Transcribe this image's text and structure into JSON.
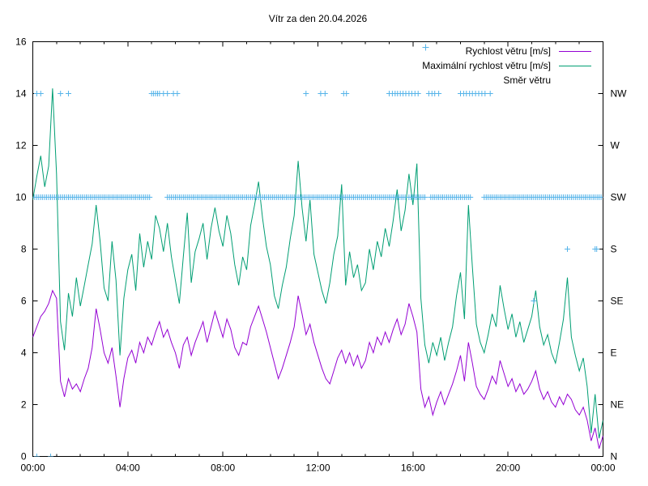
{
  "title": "Vítr za den 20.04.2026",
  "legend": {
    "items": [
      {
        "label": "Rychlost větru [m/s]",
        "color": "#9400d3",
        "sample": "line"
      },
      {
        "label": "Maximální rychlost větru [m/s]",
        "color": "#009e73",
        "sample": "line"
      },
      {
        "label": "Směr větru",
        "color": "#56b4e9",
        "sample": "plus-marker"
      }
    ]
  },
  "axes": {
    "x": {
      "tick_labels": [
        "00:00",
        "04:00",
        "08:00",
        "12:00",
        "16:00",
        "20:00",
        "00:00"
      ],
      "major_step_min": 240,
      "minor_step_min": 60,
      "range_min": [
        0,
        1440
      ]
    },
    "y_left": {
      "tick_labels": [
        "0",
        "2",
        "4",
        "6",
        "8",
        "10",
        "12",
        "14",
        "16"
      ],
      "range": [
        0,
        16
      ]
    },
    "y_right": {
      "labels": [
        "N",
        "NE",
        "E",
        "SE",
        "S",
        "SW",
        "W",
        "NW"
      ],
      "values": [
        0,
        2,
        4,
        6,
        8,
        10,
        12,
        14
      ]
    }
  },
  "colors": {
    "wind_speed": "#9400d3",
    "max_wind_speed": "#009e73",
    "wind_direction": "#56b4e9",
    "axis": "#000000",
    "background": "#ffffff"
  },
  "chart_data": {
    "type": "line",
    "title": "Vítr za den 20.04.2026",
    "xlabel": "",
    "ylabel": "",
    "ylim": [
      0,
      16
    ],
    "x_time_range": [
      "00:00",
      "24:00"
    ],
    "t_start_min": 0,
    "t_step_min": 10,
    "grid": false,
    "legend_position": "top-right-inside",
    "series": [
      {
        "name": "Rychlost větru [m/s]",
        "color": "#9400d3",
        "values": [
          4.6,
          5.0,
          5.4,
          5.6,
          5.9,
          6.4,
          6.1,
          2.9,
          2.3,
          3.0,
          2.6,
          2.8,
          2.5,
          3.0,
          3.4,
          4.2,
          5.7,
          4.9,
          4.0,
          3.6,
          4.2,
          3.1,
          1.9,
          3.0,
          3.8,
          4.1,
          3.6,
          4.4,
          4.0,
          4.6,
          4.3,
          4.8,
          5.2,
          4.6,
          4.9,
          4.4,
          4.0,
          3.4,
          4.3,
          4.6,
          3.9,
          4.4,
          4.8,
          5.2,
          4.4,
          5.0,
          5.6,
          5.1,
          4.6,
          5.3,
          4.9,
          4.2,
          3.9,
          4.4,
          4.3,
          5.0,
          5.4,
          5.8,
          5.3,
          4.8,
          4.2,
          3.6,
          3.0,
          3.4,
          3.9,
          4.4,
          5.0,
          6.2,
          5.5,
          4.7,
          5.1,
          4.4,
          3.9,
          3.4,
          3.0,
          2.8,
          3.3,
          3.8,
          4.1,
          3.6,
          4.0,
          3.5,
          3.9,
          3.4,
          3.7,
          4.4,
          4.0,
          4.6,
          4.3,
          4.8,
          4.4,
          4.9,
          5.3,
          4.7,
          5.1,
          5.9,
          5.4,
          4.8,
          2.6,
          1.9,
          2.3,
          1.6,
          2.1,
          2.5,
          2.0,
          2.4,
          2.8,
          3.3,
          3.9,
          2.9,
          4.4,
          3.6,
          2.7,
          2.4,
          2.2,
          2.6,
          3.1,
          2.8,
          3.7,
          3.2,
          2.7,
          3.0,
          2.5,
          2.8,
          2.4,
          2.6,
          2.9,
          3.3,
          2.6,
          2.2,
          2.5,
          2.1,
          1.9,
          2.3,
          2.0,
          2.4,
          2.2,
          1.8,
          1.6,
          1.9,
          1.4,
          0.6,
          1.1,
          0.3,
          0.8
        ]
      },
      {
        "name": "Maximální rychlost větru [m/s]",
        "color": "#009e73",
        "values": [
          9.9,
          10.8,
          11.6,
          10.4,
          11.2,
          14.2,
          10.9,
          5.2,
          4.1,
          6.3,
          5.4,
          6.9,
          5.8,
          6.6,
          7.4,
          8.2,
          9.7,
          8.3,
          6.5,
          6.0,
          8.3,
          6.8,
          3.9,
          6.1,
          7.2,
          7.8,
          6.4,
          8.6,
          7.3,
          8.3,
          7.6,
          9.3,
          8.8,
          7.9,
          9.0,
          7.7,
          6.8,
          5.9,
          7.7,
          9.4,
          6.7,
          7.9,
          8.4,
          9.0,
          7.6,
          8.8,
          9.6,
          8.7,
          8.1,
          9.3,
          8.6,
          7.4,
          6.6,
          7.7,
          7.2,
          8.9,
          9.7,
          10.6,
          9.2,
          8.1,
          7.4,
          6.2,
          5.7,
          6.6,
          7.3,
          8.4,
          9.3,
          11.4,
          9.6,
          8.3,
          9.9,
          7.8,
          7.1,
          6.4,
          5.9,
          6.7,
          7.8,
          8.5,
          10.5,
          6.6,
          7.9,
          6.9,
          7.4,
          6.4,
          6.7,
          8.0,
          7.2,
          8.3,
          7.7,
          8.8,
          8.1,
          9.1,
          10.3,
          8.7,
          9.5,
          10.9,
          9.7,
          11.3,
          6.1,
          4.3,
          3.6,
          4.4,
          3.9,
          4.6,
          3.7,
          4.4,
          5.0,
          6.2,
          7.1,
          5.3,
          9.7,
          7.3,
          5.1,
          4.4,
          4.0,
          4.7,
          5.5,
          5.0,
          6.6,
          5.7,
          4.9,
          5.5,
          4.6,
          5.2,
          4.4,
          4.9,
          5.4,
          6.4,
          5.0,
          4.3,
          4.7,
          4.0,
          3.6,
          4.4,
          5.3,
          6.9,
          4.6,
          3.9,
          3.3,
          3.8,
          2.7,
          0.9,
          2.4,
          0.7,
          1.4
        ]
      }
    ],
    "direction_series": {
      "name": "Směr větru",
      "color": "#56b4e9",
      "marker": "plus",
      "dir_to_value": {
        "N": 0,
        "NE": 2,
        "E": 4,
        "SE": 6,
        "S": 8,
        "SW": 10,
        "W": 12,
        "NW": 14
      },
      "marker_ranges": [
        {
          "dir": "SW",
          "start_min": 5,
          "end_min": 295,
          "step_min": 5
        },
        {
          "dir": "SW",
          "start_min": 340,
          "end_min": 940,
          "step_min": 5
        },
        {
          "dir": "SW",
          "start_min": 950,
          "end_min": 990,
          "step_min": 5
        },
        {
          "dir": "SW",
          "start_min": 1005,
          "end_min": 1105,
          "step_min": 5
        },
        {
          "dir": "SW",
          "start_min": 1140,
          "end_min": 1435,
          "step_min": 5
        }
      ],
      "marker_points": [
        {
          "dir": "NW",
          "times_min": [
            10,
            20,
            70,
            90,
            300,
            305,
            310,
            315,
            320,
            330,
            340,
            355,
            365,
            690,
            727,
            738,
            785,
            792,
            900,
            908,
            915,
            921,
            928,
            935,
            942,
            950,
            957,
            965,
            973,
            1000,
            1008,
            1015,
            1025,
            1080,
            1088,
            1095,
            1103,
            1110,
            1118,
            1126,
            1134,
            1142,
            1155
          ]
        },
        {
          "dir": "N",
          "times_min": [
            10,
            45
          ]
        },
        {
          "dir": "SE",
          "times_min": [
            1265
          ]
        },
        {
          "dir": "S",
          "times_min": [
            1350,
            1420,
            1424
          ]
        }
      ]
    }
  }
}
